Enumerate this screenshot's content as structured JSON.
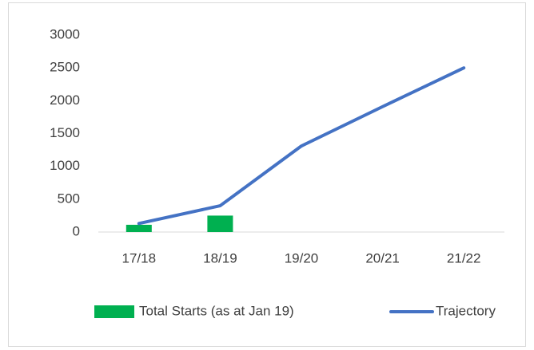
{
  "chart_data": {
    "type": "bar",
    "categories": [
      "17/18",
      "18/19",
      "19/20",
      "20/21",
      "21/22"
    ],
    "series": [
      {
        "name": "Total Starts (as at Jan 19)",
        "type": "bar",
        "color": "#00b050",
        "values": [
          110,
          250,
          null,
          null,
          null
        ]
      },
      {
        "name": "Trajectory",
        "type": "line",
        "color": "#4472c4",
        "values": [
          130,
          400,
          1310,
          1910,
          2500
        ]
      }
    ],
    "ylim": [
      0,
      3000
    ],
    "yticks": [
      0,
      500,
      1000,
      1500,
      2000,
      2500,
      3000
    ],
    "grid": false,
    "legend": "bottom"
  }
}
